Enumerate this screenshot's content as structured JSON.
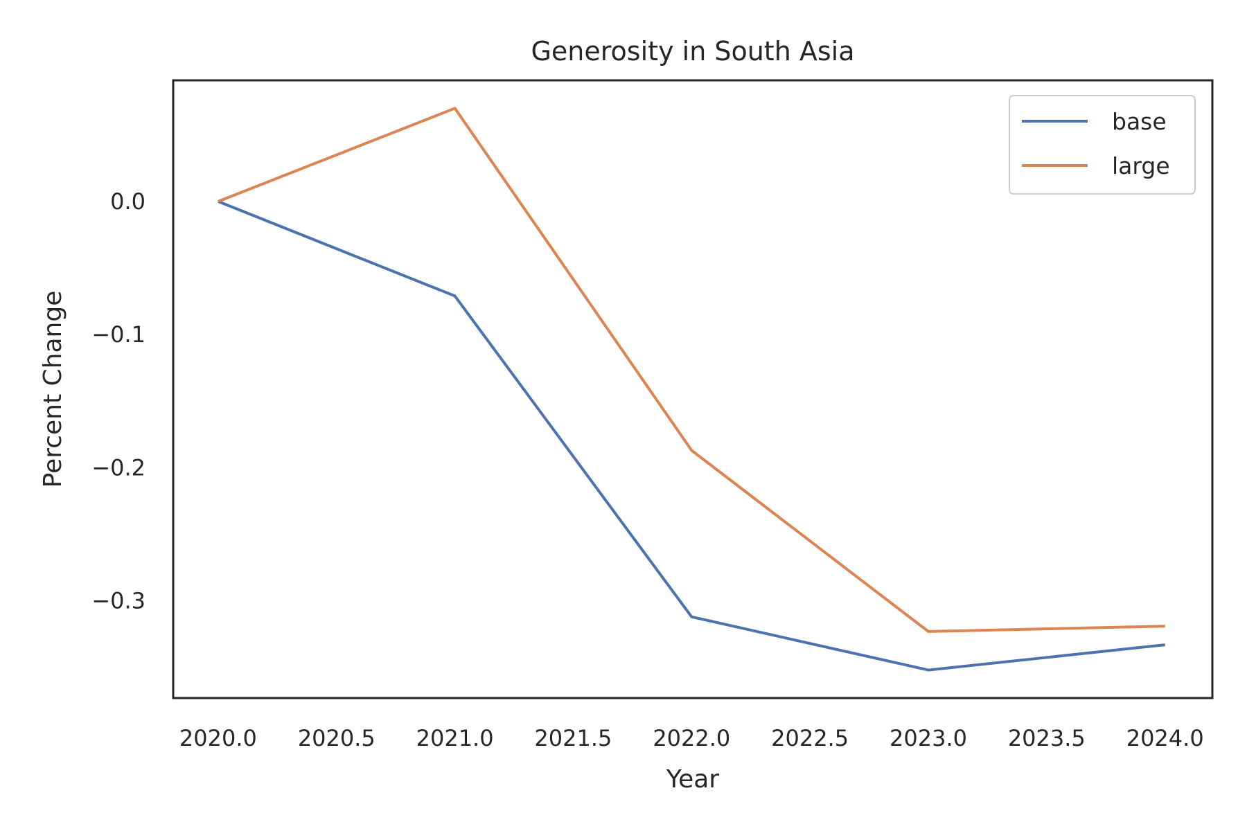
{
  "chart_data": {
    "type": "line",
    "title": "Generosity in South Asia",
    "xlabel": "Year",
    "ylabel": "Percent Change",
    "x": [
      2020,
      2021,
      2022,
      2023,
      2024
    ],
    "xlim": [
      2019.81,
      2024.2
    ],
    "ylim": [
      -0.373,
      0.091
    ],
    "xticks": [
      2020.0,
      2020.5,
      2021.0,
      2021.5,
      2022.0,
      2022.5,
      2023.0,
      2023.5,
      2024.0
    ],
    "xtick_labels": [
      "2020.0",
      "2020.5",
      "2021.0",
      "2021.5",
      "2022.0",
      "2022.5",
      "2023.0",
      "2023.5",
      "2024.0"
    ],
    "yticks": [
      0.0,
      -0.1,
      -0.2,
      -0.3
    ],
    "ytick_labels": [
      "0.0",
      "−0.1",
      "−0.2",
      "−0.3"
    ],
    "grid": false,
    "legend_position": "top-right",
    "series": [
      {
        "name": "base",
        "color": "#4c72b0",
        "values": [
          0.0,
          -0.071,
          -0.312,
          -0.352,
          -0.333
        ]
      },
      {
        "name": "large",
        "color": "#dd8452",
        "values": [
          0.0,
          0.07,
          -0.187,
          -0.323,
          -0.319
        ]
      }
    ]
  }
}
